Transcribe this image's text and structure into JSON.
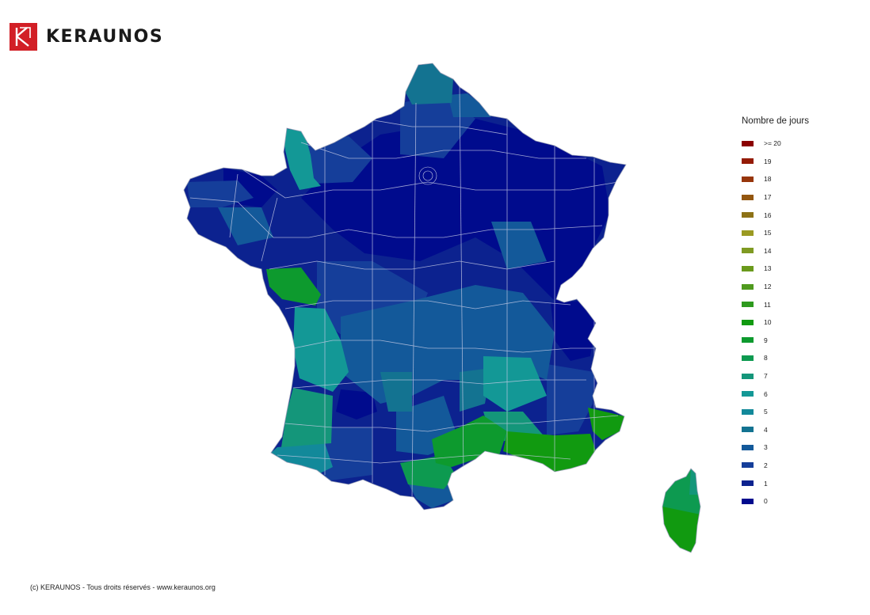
{
  "brand": {
    "name": "KERAUNOS",
    "color": "#d21f26"
  },
  "legend": {
    "title": "Nombre de jours",
    "items": [
      {
        "label": ">= 20",
        "color": "#8b0000"
      },
      {
        "label": "19",
        "color": "#941b06"
      },
      {
        "label": "18",
        "color": "#97360b"
      },
      {
        "label": "17",
        "color": "#93560f"
      },
      {
        "label": "16",
        "color": "#8d7216"
      },
      {
        "label": "15",
        "color": "#9b9a22"
      },
      {
        "label": "14",
        "color": "#7f9a22"
      },
      {
        "label": "13",
        "color": "#6a9a1c"
      },
      {
        "label": "12",
        "color": "#4f9a1e"
      },
      {
        "label": "11",
        "color": "#2e9a1e"
      },
      {
        "label": "10",
        "color": "#119a10"
      },
      {
        "label": "9",
        "color": "#0d9a2e"
      },
      {
        "label": "8",
        "color": "#0d9a50"
      },
      {
        "label": "7",
        "color": "#14967a"
      },
      {
        "label": "6",
        "color": "#139896"
      },
      {
        "label": "5",
        "color": "#12899a"
      },
      {
        "label": "4",
        "color": "#137391"
      },
      {
        "label": "3",
        "color": "#13599a"
      },
      {
        "label": "2",
        "color": "#153e9a"
      },
      {
        "label": "1",
        "color": "#0c228f"
      },
      {
        "label": "0",
        "color": "#000b8d"
      }
    ]
  },
  "footer": {
    "text": "(c) KERAUNOS - Tous droits réservés - www.keraunos.org"
  }
}
